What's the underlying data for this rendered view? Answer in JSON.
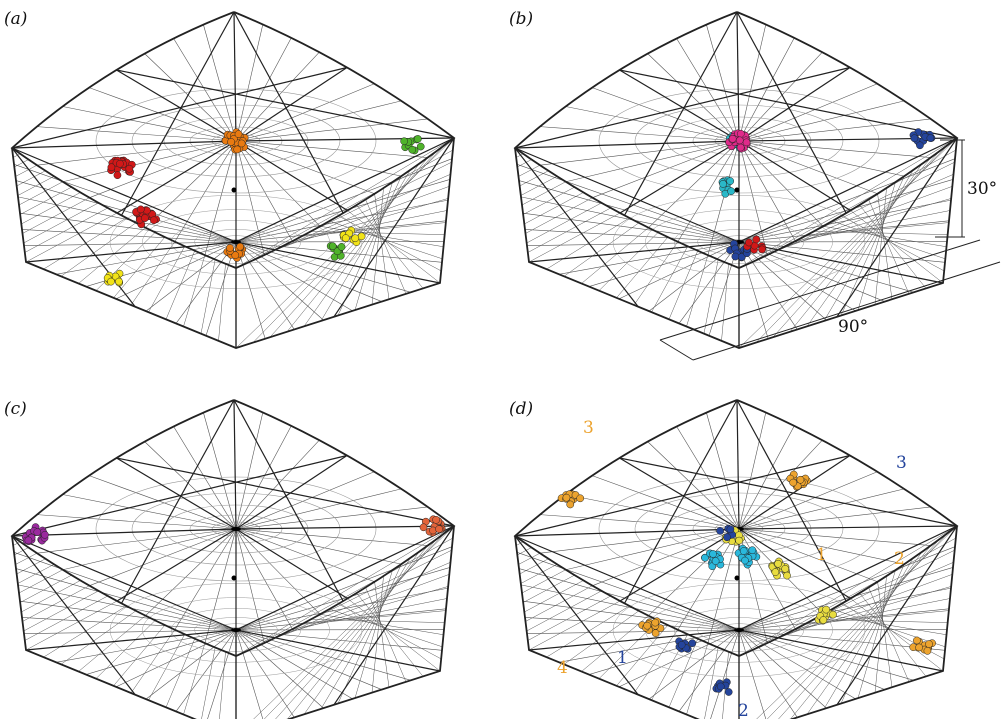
{
  "panels": [
    {
      "id": "a",
      "label": "(a)",
      "clusters": [
        {
          "color": "#f2e318",
          "theta": 0.32,
          "phi": 0.6,
          "n": 10
        },
        {
          "color": "#4fb32a",
          "theta": 0.26,
          "phi": 0.42,
          "n": 10
        },
        {
          "color": "#e97a10",
          "theta": 0.5,
          "phi": 0.0,
          "n": 22
        },
        {
          "color": "#d11818",
          "theta": 0.69,
          "phi": 0.33,
          "n": 22
        },
        {
          "color": "#e97a10",
          "theta": 0.5,
          "phi": 1.0,
          "n": 14
        },
        {
          "color": "#d11818",
          "theta": 0.07,
          "phi": 0.82,
          "n": 20
        },
        {
          "color": "#4fb32a",
          "theta": 0.79,
          "phi": 0.78,
          "n": 10
        },
        {
          "color": "#f2e318",
          "theta": 0.84,
          "phi": 0.74,
          "n": 10
        }
      ]
    },
    {
      "id": "b",
      "label": "(b)",
      "clusters": [
        {
          "color": "#d11818",
          "theta": 0.0,
          "phi": 0.0,
          "n": 10
        },
        {
          "color": "#2ab8c8",
          "theta": 0.53,
          "phi": 0.2,
          "n": 10
        },
        {
          "color": "#2ab8c8",
          "theta": 0.25,
          "phi": 0.0,
          "n": 12
        },
        {
          "color": "#e02a8a",
          "theta": 0.75,
          "phi": 0.0,
          "n": 14
        },
        {
          "color": "#24449c",
          "theta": 0.25,
          "phi": 0.42,
          "n": 14
        },
        {
          "color": "#24449c",
          "theta": 0.5,
          "phi": 1.0,
          "n": 16
        },
        {
          "color": "#d11818",
          "theta": 0.75,
          "phi": 1.0,
          "n": 8
        },
        {
          "color": "#e02a8a",
          "theta": 0.5,
          "phi": 0.0,
          "n": 16
        }
      ],
      "annotations": {
        "elevation": "30°",
        "azimuth": "90°"
      }
    },
    {
      "id": "c",
      "label": "(c)",
      "clusters": [
        {
          "color": "#e3643a",
          "theta": 0.25,
          "phi": 0.45,
          "n": 14
        },
        {
          "color": "#9a2a9e",
          "theta": 0.75,
          "phi": 0.45,
          "n": 18
        }
      ]
    },
    {
      "id": "d",
      "label": "(d)",
      "clusters": [
        {
          "color": "#eca32e",
          "theta": 0.11,
          "phi": 0.3,
          "n": 14
        },
        {
          "color": "#e8dc40",
          "theta": 0.4,
          "phi": 0.24,
          "n": 16
        },
        {
          "color": "#2ab8dc",
          "theta": 0.47,
          "phi": 0.12,
          "n": 18
        },
        {
          "color": "#2ab8dc",
          "theta": 0.58,
          "phi": 0.16,
          "n": 14
        },
        {
          "color": "#e8dc40",
          "theta": 0.57,
          "phi": 0.04,
          "n": 10
        },
        {
          "color": "#24449c",
          "theta": 0.68,
          "phi": 0.04,
          "n": 6
        },
        {
          "color": "#eca32e",
          "theta": 0.79,
          "phi": 0.56,
          "n": 14
        },
        {
          "color": "#eca32e",
          "theta": 0.81,
          "phi": 0.48,
          "n": 14
        },
        {
          "color": "#eca32e",
          "theta": 0.19,
          "phi": 0.82,
          "n": 12
        },
        {
          "color": "#24449c",
          "theta": 0.31,
          "phi": 0.86,
          "n": 8
        },
        {
          "color": "#24449c",
          "theta": 0.47,
          "phi": 0.72,
          "n": 8
        },
        {
          "color": "#e8dc40",
          "theta": 0.88,
          "phi": 0.82,
          "n": 12
        }
      ],
      "number_labels": [
        {
          "text": "3",
          "color": "#eca32e"
        },
        {
          "text": "3",
          "color": "#24449c"
        },
        {
          "text": "1",
          "color": "#eca32e"
        },
        {
          "text": "2",
          "color": "#eca32e"
        },
        {
          "text": "4",
          "color": "#eca32e"
        },
        {
          "text": "1",
          "color": "#24449c"
        },
        {
          "text": "2",
          "color": "#24449c"
        }
      ]
    }
  ],
  "colors": {
    "frame": "#222222",
    "grid": "#555555",
    "circle": "#999999"
  }
}
